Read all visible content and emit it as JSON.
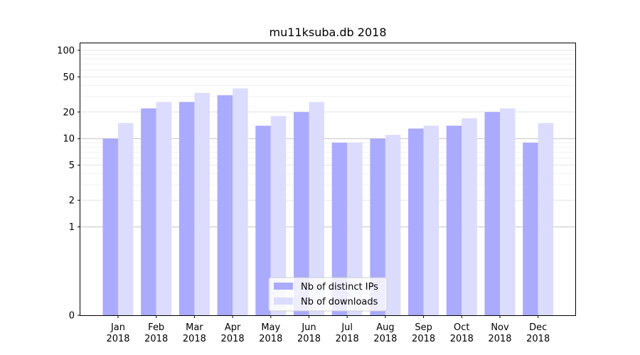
{
  "chart_data": {
    "type": "bar",
    "title": "mu11ksuba.db 2018",
    "xlabel": "",
    "ylabel": "",
    "y_scale": "symlog",
    "ylim": [
      0,
      120
    ],
    "y_ticks": [
      0,
      1,
      2,
      5,
      10,
      20,
      50,
      100
    ],
    "grid": true,
    "legend_position": "lower-center",
    "categories": [
      [
        "Jan",
        "2018"
      ],
      [
        "Feb",
        "2018"
      ],
      [
        "Mar",
        "2018"
      ],
      [
        "Apr",
        "2018"
      ],
      [
        "May",
        "2018"
      ],
      [
        "Jun",
        "2018"
      ],
      [
        "Jul",
        "2018"
      ],
      [
        "Aug",
        "2018"
      ],
      [
        "Sep",
        "2018"
      ],
      [
        "Oct",
        "2018"
      ],
      [
        "Nov",
        "2018"
      ],
      [
        "Dec",
        "2018"
      ]
    ],
    "series": [
      {
        "name": "Nb of distinct IPs",
        "color": "#aaaaff",
        "values": [
          10,
          22,
          26,
          31,
          14,
          20,
          9,
          10,
          13,
          14,
          20,
          9
        ]
      },
      {
        "name": "Nb of downloads",
        "color": "#dcdcff",
        "values": [
          15,
          26,
          33,
          37,
          18,
          26,
          9,
          11,
          14,
          17,
          22,
          15
        ]
      }
    ]
  }
}
